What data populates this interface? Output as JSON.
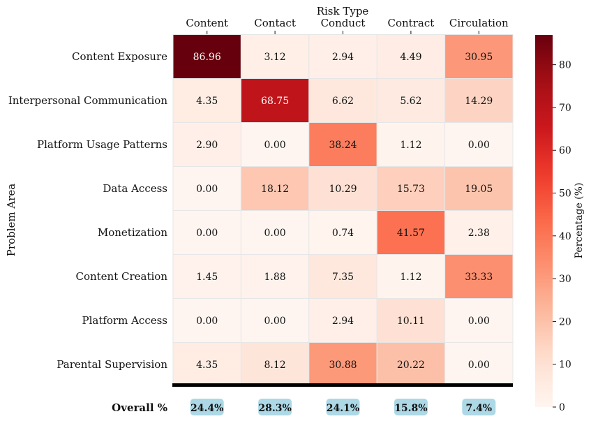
{
  "chart_data": {
    "type": "heatmap",
    "title": "",
    "xlabel": "Risk Type",
    "ylabel": "Problem Area",
    "x_categories": [
      "Content",
      "Contact",
      "Conduct",
      "Contract",
      "Circulation"
    ],
    "y_categories": [
      "Content Exposure",
      "Interpersonal Communication",
      "Platform Usage Patterns",
      "Data Access",
      "Monetization",
      "Content Creation",
      "Platform Access",
      "Parental Supervision"
    ],
    "cell_labels": [
      [
        "86.96",
        "3.12",
        "2.94",
        "4.49",
        "30.95"
      ],
      [
        "4.35",
        "68.75",
        "6.62",
        "5.62",
        "14.29"
      ],
      [
        "2.90",
        "0.00",
        "38.24",
        "1.12",
        "0.00"
      ],
      [
        "0.00",
        "18.12",
        "10.29",
        "15.73",
        "19.05"
      ],
      [
        "0.00",
        "0.00",
        "0.74",
        "41.57",
        "2.38"
      ],
      [
        "1.45",
        "1.88",
        "7.35",
        "1.12",
        "33.33"
      ],
      [
        "0.00",
        "0.00",
        "2.94",
        "10.11",
        "0.00"
      ],
      [
        "4.35",
        "8.12",
        "30.88",
        "20.22",
        "0.00"
      ]
    ],
    "values": [
      [
        86.96,
        3.12,
        2.94,
        4.49,
        30.95
      ],
      [
        4.35,
        68.75,
        6.62,
        5.62,
        14.29
      ],
      [
        2.9,
        0.0,
        38.24,
        1.12,
        0.0
      ],
      [
        0.0,
        18.12,
        10.29,
        15.73,
        19.05
      ],
      [
        0.0,
        0.0,
        0.74,
        41.57,
        2.38
      ],
      [
        1.45,
        1.88,
        7.35,
        1.12,
        33.33
      ],
      [
        0.0,
        0.0,
        2.94,
        10.11,
        0.0
      ],
      [
        4.35,
        8.12,
        30.88,
        20.22,
        0.0
      ]
    ],
    "colorbar": {
      "label": "Percentage (%)",
      "range": [
        0,
        86.96
      ],
      "ticks": [
        0,
        10,
        20,
        30,
        40,
        50,
        60,
        70,
        80
      ],
      "colormap": "Reds"
    },
    "overall": {
      "label": "Overall %",
      "values": [
        "24.4%",
        "28.3%",
        "24.1%",
        "15.8%",
        "7.4%"
      ]
    }
  },
  "colors": {
    "badge_fill": "#add8e6",
    "divider": "#000000",
    "grid": "#e6e6e6"
  }
}
